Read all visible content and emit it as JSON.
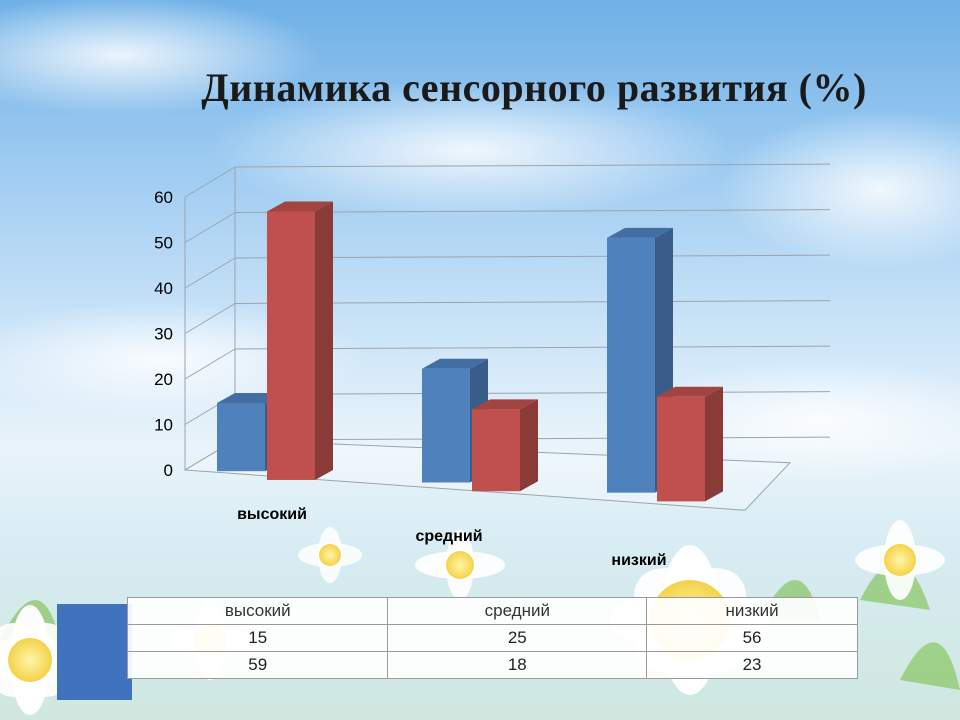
{
  "title": "Динамика сенсорного развития (%)",
  "chart_data": {
    "type": "bar",
    "categories": [
      "высокий",
      "средний",
      "низкий"
    ],
    "series": [
      {
        "values": [
          15,
          25,
          56
        ],
        "color": "#4f81bd"
      },
      {
        "values": [
          59,
          18,
          23
        ],
        "color": "#c0504d"
      }
    ],
    "ylim": [
      0,
      60
    ],
    "yticks": [
      "0",
      "10",
      "20",
      "30",
      "40",
      "50",
      "60"
    ],
    "grid": true,
    "style": "3d-clustered"
  },
  "table": {
    "headers": [
      "высокий",
      "средний",
      "низкий"
    ],
    "rows": [
      [
        "15",
        "25",
        "56"
      ],
      [
        "59",
        "18",
        "23"
      ]
    ]
  }
}
